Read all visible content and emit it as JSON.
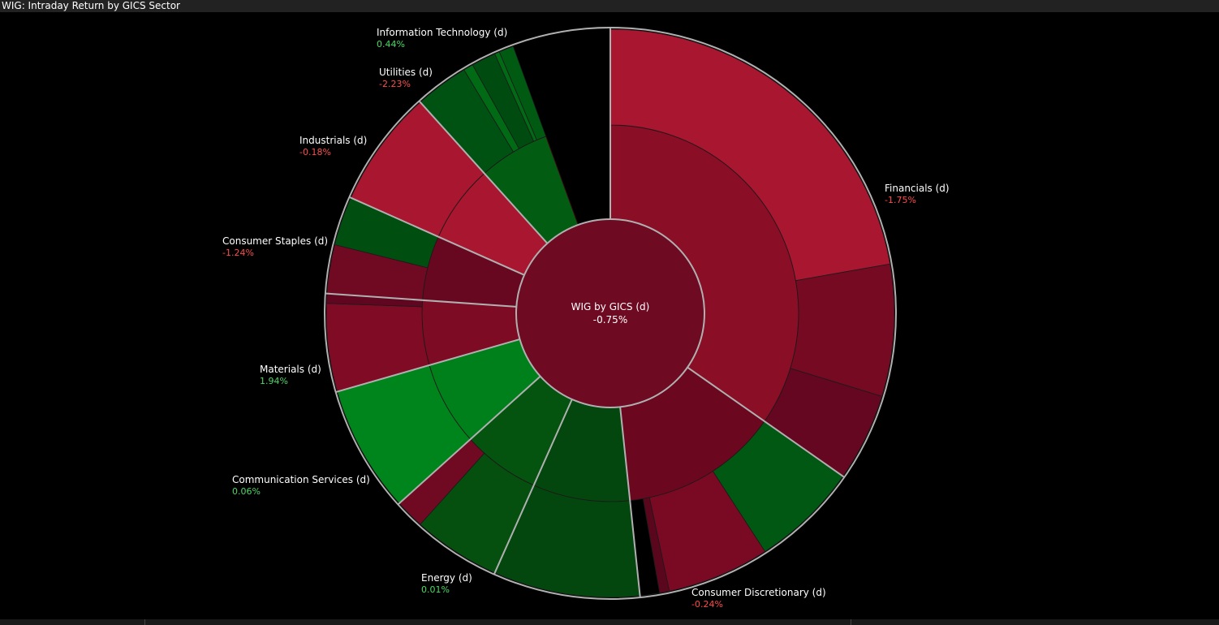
{
  "window": {
    "title": "WIG: Intraday Return by GICS Sector"
  },
  "chart_data": {
    "type": "sunburst",
    "center": {
      "name": "WIG by GICS (d)",
      "value": "-0.75%"
    },
    "colors": {
      "background": "#000000",
      "positive_text": "#4cd964",
      "negative_text": "#ff4b4b",
      "separator": "#b0b0b0"
    },
    "sectors": [
      {
        "name": "Financials (d)",
        "value": "-1.75%",
        "angle": 125,
        "color": "#8a0e26",
        "children": [
          {
            "angle": 80,
            "color": "#a8162f"
          },
          {
            "angle": 27,
            "color": "#750a22"
          },
          {
            "angle": 18,
            "color": "#650720"
          }
        ]
      },
      {
        "name": "Consumer Discretionary (d)",
        "value": "-0.24%",
        "angle": 49,
        "color": "#6b0820",
        "children": [
          {
            "angle": 22,
            "color": "#005812"
          },
          {
            "angle": 21,
            "color": "#7a0a23"
          },
          {
            "angle": 2,
            "color": "#5a061c"
          },
          {
            "angle": 4,
            "color": "#000000"
          }
        ]
      },
      {
        "name": "Energy (d)",
        "value": "0.01%",
        "angle": 30,
        "color": "#03470f",
        "children": [
          {
            "angle": 30,
            "color": "#03470f"
          }
        ]
      },
      {
        "name": "Communication Services (d)",
        "value": "0.06%",
        "angle": 24,
        "color": "#04530f",
        "children": [
          {
            "angle": 18,
            "color": "#05500f"
          },
          {
            "angle": 6,
            "color": "#700a22"
          }
        ]
      },
      {
        "name": "Materials (d)",
        "value": "1.94%",
        "angle": 26,
        "color": "#00801a",
        "children": [
          {
            "angle": 26,
            "color": "#00851c"
          }
        ]
      },
      {
        "name": "Consumer Staples (d)",
        "value": "-1.24%",
        "angle": 20,
        "color": "#7c0b23",
        "children": [
          {
            "angle": 18,
            "color": "#7f0c24"
          },
          {
            "angle": 2,
            "color": "#600620"
          }
        ]
      },
      {
        "name": "Industrials (d)",
        "value": "-0.18%",
        "angle": 20,
        "color": "#680820",
        "children": [
          {
            "angle": 10,
            "color": "#700a22"
          },
          {
            "angle": 10,
            "color": "#004f10"
          }
        ]
      },
      {
        "name": "Utilities (d)",
        "value": "-2.23%",
        "angle": 24,
        "color": "#a8162f",
        "children": [
          {
            "angle": 24,
            "color": "#a8162f"
          }
        ]
      },
      {
        "name": "Information Technology (d)",
        "value": "0.44%",
        "angle": 22,
        "color": "#025c12",
        "children": [
          {
            "angle": 11,
            "color": "#005212"
          },
          {
            "angle": 2,
            "color": "#006a15"
          },
          {
            "angle": 5,
            "color": "#004b10"
          },
          {
            "angle": 1,
            "color": "#006a15"
          },
          {
            "angle": 3,
            "color": "#005a12"
          }
        ]
      }
    ]
  }
}
